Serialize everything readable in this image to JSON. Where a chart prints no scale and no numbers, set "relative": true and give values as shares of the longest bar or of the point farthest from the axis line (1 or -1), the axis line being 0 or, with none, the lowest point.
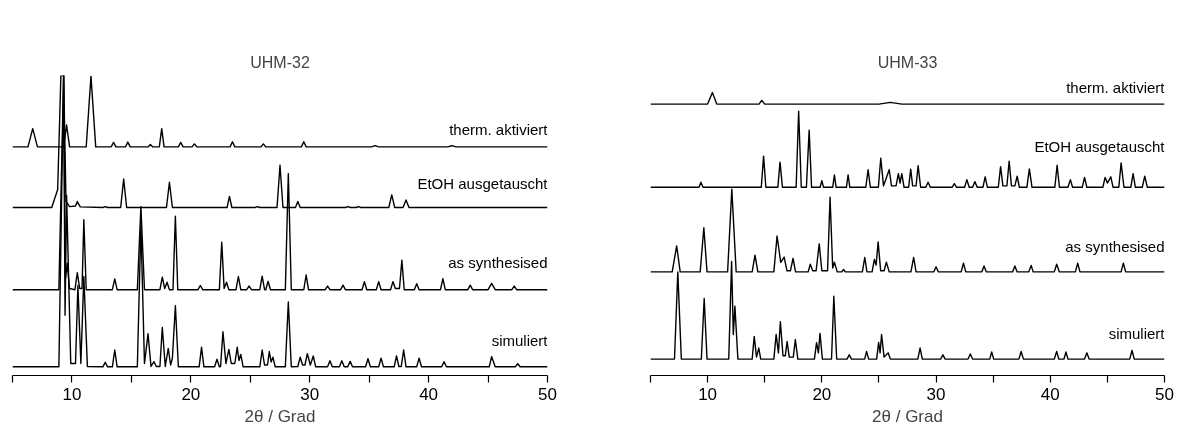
{
  "chart_data": [
    {
      "type": "line",
      "title": "UHM-32",
      "xlabel": "2θ / Grad",
      "relative": true,
      "xlim": [
        5,
        50
      ],
      "xticks": [
        {
          "value": 5,
          "label": null
        },
        10,
        {
          "value": 15,
          "label": null
        },
        20,
        {
          "value": 25,
          "label": null
        },
        30,
        {
          "value": 35,
          "label": null
        },
        40,
        {
          "value": 45,
          "label": null
        },
        50
      ],
      "series": [
        {
          "name": "therm. aktiviert",
          "color": "#000000",
          "x": [
            5,
            6.3,
            6.7,
            7.1,
            9.3,
            9.55,
            9.8,
            11.2,
            11.6,
            12.0,
            13.3,
            13.5,
            13.7,
            14.5,
            14.7,
            14.9,
            16.4,
            16.6,
            16.8,
            17.35,
            17.55,
            17.75,
            18.95,
            19.15,
            19.35,
            20.1,
            20.3,
            20.5,
            23.3,
            23.5,
            23.7,
            25.9,
            26.1,
            26.3,
            29.3,
            29.5,
            29.7,
            35.2,
            35.5,
            35.8,
            41.6,
            41.97,
            42.3,
            50
          ],
          "values": [
            0.762,
            0.762,
            0.823,
            0.762,
            0.762,
            0.835,
            0.762,
            0.762,
            0.998,
            0.762,
            0.762,
            0.777,
            0.762,
            0.762,
            0.778,
            0.762,
            0.762,
            0.77,
            0.762,
            0.762,
            0.823,
            0.762,
            0.762,
            0.777,
            0.762,
            0.762,
            0.772,
            0.762,
            0.762,
            0.779,
            0.762,
            0.762,
            0.772,
            0.762,
            0.762,
            0.779,
            0.762,
            0.762,
            0.766,
            0.762,
            0.762,
            0.766,
            0.762,
            0.762
          ]
        },
        {
          "name": "EtOH ausgetauscht",
          "color": "#000000",
          "x": [
            5,
            8.3,
            8.8,
            9.07,
            9.3,
            9.5,
            9.8,
            10.3,
            10.45,
            10.7,
            12.6,
            12.8,
            13.0,
            14.1,
            14.35,
            14.6,
            17.95,
            18.2,
            18.45,
            23.05,
            23.25,
            23.45,
            25.4,
            25.6,
            25.8,
            27.25,
            27.5,
            27.75,
            28.8,
            29.0,
            29.2,
            33.0,
            33.2,
            33.4,
            33.9,
            34.1,
            34.3,
            36.65,
            36.9,
            37.15,
            37.85,
            38.1,
            38.35,
            50
          ],
          "values": [
            0.56,
            0.56,
            0.62,
            1.0,
            1.0,
            0.58,
            0.563,
            0.565,
            0.58,
            0.562,
            0.56,
            0.563,
            0.56,
            0.56,
            0.655,
            0.56,
            0.56,
            0.644,
            0.56,
            0.56,
            0.597,
            0.56,
            0.56,
            0.563,
            0.56,
            0.56,
            0.701,
            0.56,
            0.56,
            0.58,
            0.56,
            0.56,
            0.563,
            0.56,
            0.56,
            0.563,
            0.56,
            0.56,
            0.602,
            0.56,
            0.56,
            0.585,
            0.56,
            0.56
          ]
        },
        {
          "name": "as synthesised",
          "color": "#000000",
          "x": [
            5,
            8.9,
            9.3,
            9.45,
            9.6,
            9.8,
            10.25,
            10.45,
            10.65,
            10.85,
            11.0,
            11.2,
            13.4,
            13.6,
            13.8,
            15.5,
            15.8,
            16.1,
            17.4,
            17.6,
            17.8,
            18.0,
            18.2,
            18.5,
            18.7,
            18.9,
            20.6,
            20.8,
            21.0,
            22.4,
            22.6,
            22.8,
            23.0,
            23.2,
            23.8,
            24.0,
            24.2,
            24.7,
            24.9,
            25.1,
            25.8,
            26.0,
            26.2,
            26.3,
            26.5,
            26.7,
            27.95,
            28.2,
            28.45,
            29.5,
            29.7,
            29.9,
            31.3,
            31.5,
            31.7,
            32.6,
            32.8,
            33.0,
            34.4,
            34.6,
            34.8,
            35.6,
            35.8,
            36.0,
            36.8,
            37.0,
            37.2,
            37.55,
            37.75,
            37.95,
            38.8,
            39.0,
            39.2,
            41.0,
            41.2,
            41.4,
            43.3,
            43.5,
            43.7,
            45.0,
            45.3,
            45.6,
            47.0,
            47.2,
            47.4,
            50
          ],
          "values": [
            0.286,
            0.286,
            1.0,
            0.32,
            0.374,
            0.29,
            0.286,
            0.343,
            0.29,
            0.29,
            0.519,
            0.286,
            0.286,
            0.322,
            0.286,
            0.286,
            0.563,
            0.286,
            0.286,
            0.328,
            0.29,
            0.311,
            0.286,
            0.286,
            0.531,
            0.286,
            0.286,
            0.3,
            0.286,
            0.286,
            0.444,
            0.29,
            0.311,
            0.286,
            0.286,
            0.33,
            0.286,
            0.286,
            0.298,
            0.286,
            0.286,
            0.331,
            0.286,
            0.286,
            0.314,
            0.286,
            0.286,
            0.673,
            0.286,
            0.286,
            0.335,
            0.286,
            0.286,
            0.298,
            0.286,
            0.286,
            0.301,
            0.286,
            0.286,
            0.313,
            0.286,
            0.286,
            0.313,
            0.286,
            0.286,
            0.313,
            0.29,
            0.29,
            0.384,
            0.286,
            0.286,
            0.306,
            0.286,
            0.286,
            0.323,
            0.286,
            0.286,
            0.301,
            0.286,
            0.286,
            0.307,
            0.286,
            0.286,
            0.298,
            0.286,
            0.286
          ]
        },
        {
          "name": "simuliert",
          "color": "#000000",
          "x": [
            5,
            8.9,
            9.3,
            9.42,
            9.55,
            9.9,
            10.3,
            10.5,
            10.75,
            11.0,
            11.3,
            12.6,
            12.8,
            13.0,
            13.4,
            13.6,
            13.8,
            15.5,
            15.8,
            16.1,
            16.4,
            16.65,
            16.9,
            17.1,
            17.4,
            17.6,
            17.85,
            18.1,
            18.3,
            18.45,
            18.7,
            18.95,
            20.7,
            20.9,
            21.1,
            22.0,
            22.2,
            22.4,
            22.5,
            22.7,
            22.95,
            23.2,
            23.4,
            23.7,
            23.9,
            24.05,
            24.2,
            24.4,
            25.8,
            26.0,
            26.2,
            26.45,
            26.6,
            26.75,
            26.9,
            27.1,
            27.95,
            28.2,
            28.45,
            29.0,
            29.2,
            29.4,
            29.6,
            29.8,
            30.05,
            30.3,
            30.5,
            31.5,
            31.7,
            31.9,
            32.5,
            32.7,
            32.9,
            33.2,
            33.4,
            33.6,
            34.7,
            34.9,
            35.1,
            35.8,
            36.0,
            36.2,
            37.1,
            37.3,
            37.5,
            37.7,
            37.9,
            38.1,
            39.0,
            39.2,
            39.4,
            41.1,
            41.3,
            41.5,
            45.1,
            45.3,
            45.6,
            47.3,
            47.5,
            47.7,
            50
          ],
          "values": [
            0.029,
            0.029,
            1.0,
            0.201,
            0.6,
            0.04,
            0.04,
            0.3,
            0.04,
            0.33,
            0.03,
            0.029,
            0.044,
            0.029,
            0.029,
            0.085,
            0.029,
            0.029,
            0.5,
            0.04,
            0.139,
            0.03,
            0.046,
            0.03,
            0.03,
            0.16,
            0.03,
            0.09,
            0.035,
            0.058,
            0.233,
            0.029,
            0.029,
            0.094,
            0.029,
            0.029,
            0.054,
            0.029,
            0.03,
            0.146,
            0.04,
            0.087,
            0.04,
            0.04,
            0.094,
            0.05,
            0.07,
            0.029,
            0.029,
            0.085,
            0.035,
            0.035,
            0.08,
            0.045,
            0.061,
            0.029,
            0.029,
            0.245,
            0.029,
            0.03,
            0.061,
            0.035,
            0.035,
            0.073,
            0.035,
            0.065,
            0.029,
            0.029,
            0.049,
            0.029,
            0.029,
            0.049,
            0.029,
            0.029,
            0.047,
            0.029,
            0.029,
            0.056,
            0.029,
            0.029,
            0.058,
            0.029,
            0.029,
            0.065,
            0.03,
            0.03,
            0.085,
            0.029,
            0.029,
            0.058,
            0.029,
            0.029,
            0.046,
            0.029,
            0.029,
            0.063,
            0.029,
            0.029,
            0.039,
            0.029,
            0.029
          ]
        }
      ]
    },
    {
      "type": "line",
      "title": "UHM-33",
      "xlabel": "2θ / Grad",
      "relative": true,
      "xlim": [
        5,
        50
      ],
      "xticks": [
        {
          "value": 5,
          "label": null
        },
        10,
        {
          "value": 15,
          "label": null
        },
        20,
        {
          "value": 25,
          "label": null
        },
        30,
        {
          "value": 35,
          "label": null
        },
        40,
        {
          "value": 45,
          "label": null
        },
        50
      ],
      "series": [
        {
          "name": "therm. aktiviert",
          "color": "#000000",
          "x": [
            5,
            10.0,
            10.42,
            10.8,
            14.5,
            14.74,
            15.0,
            25.0,
            26.0,
            27.0,
            50
          ],
          "values": [
            0.959,
            0.959,
            1.0,
            0.959,
            0.959,
            0.972,
            0.959,
            0.959,
            0.965,
            0.959,
            0.959
          ]
        },
        {
          "name": "EtOH ausgetauscht",
          "color": "#000000",
          "x": [
            5,
            9.25,
            9.41,
            9.6,
            14.7,
            14.9,
            15.1,
            16.15,
            16.34,
            16.55,
            17.75,
            17.97,
            18.2,
            18.65,
            18.89,
            19.1,
            19.85,
            20.0,
            20.15,
            20.95,
            21.1,
            21.25,
            22.15,
            22.3,
            22.45,
            23.85,
            24.05,
            24.25,
            24.95,
            25.16,
            25.4,
            25.9,
            26.1,
            26.5,
            26.7,
            26.85,
            27.0,
            27.2,
            27.6,
            27.78,
            27.95,
            28.25,
            28.43,
            28.65,
            29.1,
            29.3,
            29.5,
            31.4,
            31.6,
            31.8,
            32.5,
            32.7,
            32.9,
            33.2,
            33.4,
            33.6,
            34.1,
            34.3,
            34.5,
            35.45,
            35.65,
            35.85,
            36.2,
            36.4,
            36.6,
            36.9,
            37.1,
            37.3,
            37.95,
            38.17,
            38.4,
            40.4,
            40.6,
            40.8,
            41.55,
            41.76,
            41.95,
            42.8,
            43.0,
            43.2,
            44.6,
            44.8,
            45.0,
            45.3,
            45.5,
            46.0,
            46.2,
            46.45,
            47.05,
            47.25,
            47.45,
            48.05,
            48.27,
            48.5,
            50
          ],
          "values": [
            0.665,
            0.665,
            0.683,
            0.665,
            0.665,
            0.775,
            0.665,
            0.665,
            0.754,
            0.665,
            0.665,
            0.934,
            0.665,
            0.665,
            0.867,
            0.665,
            0.665,
            0.688,
            0.665,
            0.665,
            0.709,
            0.665,
            0.665,
            0.709,
            0.665,
            0.665,
            0.727,
            0.665,
            0.665,
            0.768,
            0.67,
            0.727,
            0.67,
            0.67,
            0.713,
            0.68,
            0.713,
            0.665,
            0.665,
            0.729,
            0.67,
            0.67,
            0.741,
            0.665,
            0.665,
            0.683,
            0.665,
            0.665,
            0.678,
            0.665,
            0.665,
            0.692,
            0.665,
            0.665,
            0.685,
            0.665,
            0.665,
            0.702,
            0.665,
            0.665,
            0.738,
            0.67,
            0.67,
            0.757,
            0.67,
            0.67,
            0.704,
            0.665,
            0.665,
            0.73,
            0.665,
            0.665,
            0.743,
            0.665,
            0.665,
            0.692,
            0.665,
            0.665,
            0.7,
            0.665,
            0.665,
            0.7,
            0.68,
            0.702,
            0.665,
            0.665,
            0.751,
            0.665,
            0.665,
            0.713,
            0.665,
            0.665,
            0.704,
            0.665,
            0.665
          ]
        },
        {
          "name": "as synthesised",
          "color": "#000000",
          "x": [
            5,
            6.9,
            7.29,
            7.6,
            9.35,
            9.67,
            9.95,
            11.75,
            12.12,
            12.5,
            13.9,
            14.15,
            14.4,
            15.8,
            16.08,
            16.4,
            16.7,
            16.95,
            17.25,
            17.48,
            17.7,
            18.8,
            18.99,
            19.2,
            19.5,
            19.77,
            20.0,
            20.5,
            20.72,
            20.95,
            21.1,
            21.35,
            21.75,
            21.9,
            22.05,
            23.55,
            23.76,
            23.95,
            24.4,
            24.6,
            24.75,
            24.93,
            25.15,
            25.45,
            25.65,
            25.9,
            27.8,
            28.04,
            28.25,
            29.8,
            30.0,
            30.2,
            32.2,
            32.4,
            32.6,
            34.0,
            34.2,
            34.4,
            36.7,
            36.9,
            37.1,
            38.1,
            38.33,
            38.5,
            40.35,
            40.56,
            40.8,
            42.2,
            42.4,
            42.6,
            46.2,
            46.4,
            46.6,
            50
          ],
          "values": [
            0.366,
            0.366,
            0.458,
            0.366,
            0.366,
            0.522,
            0.366,
            0.366,
            0.658,
            0.366,
            0.366,
            0.425,
            0.366,
            0.366,
            0.493,
            0.4,
            0.418,
            0.37,
            0.37,
            0.414,
            0.366,
            0.366,
            0.393,
            0.37,
            0.37,
            0.465,
            0.37,
            0.37,
            0.63,
            0.38,
            0.4,
            0.366,
            0.366,
            0.375,
            0.366,
            0.366,
            0.417,
            0.366,
            0.366,
            0.41,
            0.39,
            0.472,
            0.37,
            0.37,
            0.4,
            0.366,
            0.366,
            0.417,
            0.366,
            0.366,
            0.384,
            0.366,
            0.366,
            0.397,
            0.366,
            0.366,
            0.387,
            0.366,
            0.366,
            0.387,
            0.366,
            0.366,
            0.389,
            0.366,
            0.366,
            0.393,
            0.366,
            0.366,
            0.397,
            0.366,
            0.366,
            0.397,
            0.366,
            0.366
          ]
        },
        {
          "name": "simuliert",
          "color": "#000000",
          "x": [
            5,
            7.1,
            7.39,
            7.7,
            9.45,
            9.7,
            9.95,
            11.85,
            12.1,
            12.25,
            12.39,
            12.65,
            13.9,
            14.08,
            14.28,
            14.48,
            14.65,
            15.8,
            16.0,
            16.2,
            16.37,
            16.6,
            16.8,
            16.96,
            17.15,
            17.5,
            17.68,
            17.9,
            19.35,
            19.54,
            19.7,
            19.84,
            20.05,
            20.85,
            21.05,
            21.3,
            22.2,
            22.4,
            22.6,
            23.75,
            23.92,
            24.1,
            24.8,
            24.97,
            25.1,
            25.23,
            25.45,
            25.8,
            26.0,
            28.4,
            28.6,
            28.8,
            30.4,
            30.6,
            30.8,
            32.8,
            33.0,
            33.2,
            34.7,
            34.87,
            35.05,
            37.25,
            37.45,
            37.65,
            40.35,
            40.56,
            40.75,
            41.2,
            41.37,
            41.55,
            43.0,
            43.2,
            43.4,
            46.95,
            47.16,
            47.35,
            50
          ],
          "values": [
            0.058,
            0.058,
            0.366,
            0.058,
            0.058,
            0.272,
            0.058,
            0.058,
            0.403,
            0.145,
            0.245,
            0.058,
            0.058,
            0.138,
            0.065,
            0.097,
            0.058,
            0.058,
            0.145,
            0.08,
            0.19,
            0.07,
            0.07,
            0.12,
            0.065,
            0.065,
            0.127,
            0.058,
            0.058,
            0.116,
            0.08,
            0.149,
            0.058,
            0.058,
            0.28,
            0.058,
            0.058,
            0.073,
            0.058,
            0.058,
            0.085,
            0.058,
            0.058,
            0.117,
            0.08,
            0.145,
            0.065,
            0.08,
            0.058,
            0.058,
            0.097,
            0.058,
            0.058,
            0.073,
            0.058,
            0.058,
            0.076,
            0.058,
            0.058,
            0.083,
            0.058,
            0.058,
            0.085,
            0.058,
            0.058,
            0.085,
            0.058,
            0.058,
            0.083,
            0.058,
            0.058,
            0.08,
            0.058,
            0.058,
            0.089,
            0.058,
            0.058
          ]
        }
      ]
    }
  ]
}
